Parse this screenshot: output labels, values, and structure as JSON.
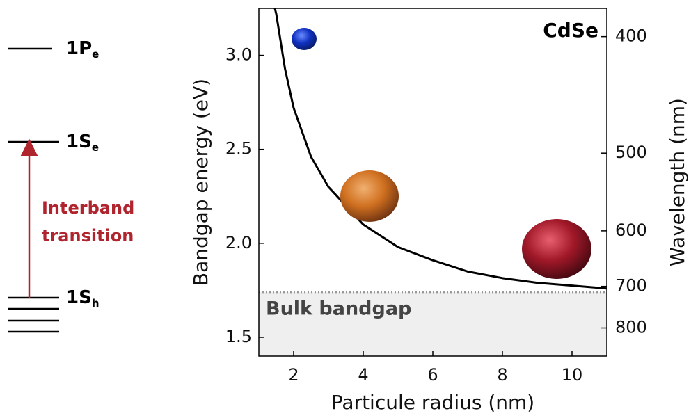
{
  "diagram": {
    "levels": [
      {
        "label": "1P",
        "subscript": "e"
      },
      {
        "label": "1S",
        "subscript": "e"
      },
      {
        "label": "1S",
        "subscript": "h"
      }
    ],
    "transition": [
      "Interband",
      "transition"
    ]
  },
  "chart_data": {
    "type": "line",
    "annotation": "CdSe",
    "x_label": "Particule radius (nm)",
    "y_label": "Bandgap energy (eV)",
    "y2_label": "Wavelength (nm)",
    "x": [
      1.46,
      1.5,
      1.75,
      2,
      2.5,
      3,
      4,
      5,
      6,
      7,
      8,
      9,
      10,
      11
    ],
    "values": [
      3.25,
      3.22,
      2.93,
      2.72,
      2.46,
      2.3,
      2.1,
      1.98,
      1.91,
      1.85,
      1.815,
      1.79,
      1.775,
      1.76
    ],
    "color": "#000000",
    "xlim": [
      1,
      11
    ],
    "xticks": [
      2,
      4,
      6,
      8,
      10
    ],
    "ylim": [
      1.4,
      3.25
    ],
    "yticks": [
      {
        "value": 1.5,
        "label": "1.5"
      },
      {
        "value": 2,
        "label": "2.0"
      },
      {
        "value": 2.5,
        "label": "2.5"
      },
      {
        "value": 3,
        "label": "3.0"
      }
    ],
    "y2ticks": [
      400,
      500,
      600,
      700,
      800
    ],
    "reference_line": {
      "value": 1.74,
      "label": "Bulk bandgap"
    }
  }
}
